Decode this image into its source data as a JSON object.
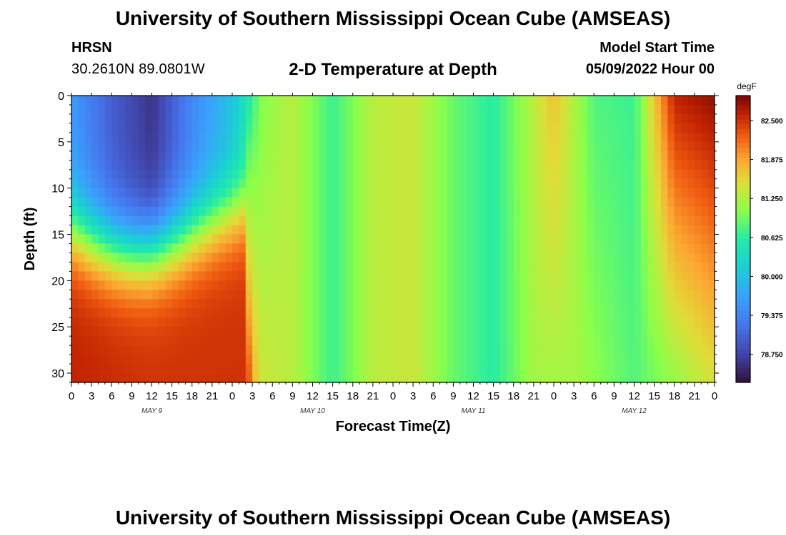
{
  "header": {
    "title": "University of Southern Mississippi Ocean Cube (AMSEAS)",
    "station": "HRSN",
    "coords": "30.2610N  89.0801W",
    "subtitle": "2-D Temperature at Depth",
    "model_start_label": "Model Start Time",
    "model_start_value": "05/09/2022 Hour 00"
  },
  "footer": {
    "title": "University of Southern Mississippi Ocean Cube (AMSEAS)"
  },
  "chart_data": {
    "type": "heatmap",
    "title": "2-D Temperature at Depth",
    "xlabel": "Forecast Time(Z)",
    "ylabel": "Depth (ft)",
    "x_ticks": [
      "0",
      "3",
      "6",
      "9",
      "12",
      "15",
      "18",
      "21",
      "0",
      "3",
      "6",
      "9",
      "12",
      "15",
      "18",
      "21",
      "0",
      "3",
      "6",
      "9",
      "12",
      "15",
      "18",
      "21",
      "0",
      "3",
      "6",
      "9",
      "12",
      "15",
      "18",
      "21",
      "0"
    ],
    "day_labels": [
      "MAY 9",
      "MAY 10",
      "MAY 11",
      "MAY 12"
    ],
    "x_range_hours": [
      0,
      96
    ],
    "y_ticks": [
      0,
      5,
      10,
      15,
      20,
      25,
      30
    ],
    "y_range_ft": [
      0,
      31
    ],
    "colorbar": {
      "unit": "degF",
      "range": [
        78.3,
        82.9
      ],
      "ticks": [
        "82.500",
        "81.875",
        "81.250",
        "80.625",
        "80.000",
        "79.375",
        "78.750"
      ],
      "tick_values": [
        82.5,
        81.875,
        81.25,
        80.625,
        80.0,
        79.375,
        78.75
      ]
    },
    "surface_temperature_by_hour": [
      {
        "hour": 0,
        "temp": 79.6
      },
      {
        "hour": 6,
        "temp": 79.0
      },
      {
        "hour": 12,
        "temp": 78.6
      },
      {
        "hour": 18,
        "temp": 79.4
      },
      {
        "hour": 24,
        "temp": 80.0
      },
      {
        "hour": 27,
        "temp": 80.6
      },
      {
        "hour": 28,
        "temp": 81.0
      },
      {
        "hour": 33,
        "temp": 81.3
      },
      {
        "hour": 39,
        "temp": 80.7
      },
      {
        "hour": 45,
        "temp": 81.3
      },
      {
        "hour": 51,
        "temp": 81.4
      },
      {
        "hour": 57,
        "temp": 80.9
      },
      {
        "hour": 63,
        "temp": 80.6
      },
      {
        "hour": 69,
        "temp": 81.3
      },
      {
        "hour": 72,
        "temp": 81.7
      },
      {
        "hour": 78,
        "temp": 80.8
      },
      {
        "hour": 84,
        "temp": 80.7
      },
      {
        "hour": 90,
        "temp": 82.6
      },
      {
        "hour": 96,
        "temp": 82.8
      }
    ],
    "bottom_temperature_by_hour": [
      {
        "hour": 0,
        "temp": 82.6
      },
      {
        "hour": 12,
        "temp": 82.5
      },
      {
        "hour": 26,
        "temp": 82.5
      },
      {
        "hour": 28,
        "temp": 81.4
      },
      {
        "hour": 33,
        "temp": 81.3
      },
      {
        "hour": 39,
        "temp": 80.7
      },
      {
        "hour": 45,
        "temp": 81.3
      },
      {
        "hour": 51,
        "temp": 81.4
      },
      {
        "hour": 57,
        "temp": 80.9
      },
      {
        "hour": 63,
        "temp": 80.6
      },
      {
        "hour": 69,
        "temp": 81.2
      },
      {
        "hour": 75,
        "temp": 81.2
      },
      {
        "hour": 84,
        "temp": 80.8
      },
      {
        "hour": 96,
        "temp": 81.5
      }
    ]
  }
}
